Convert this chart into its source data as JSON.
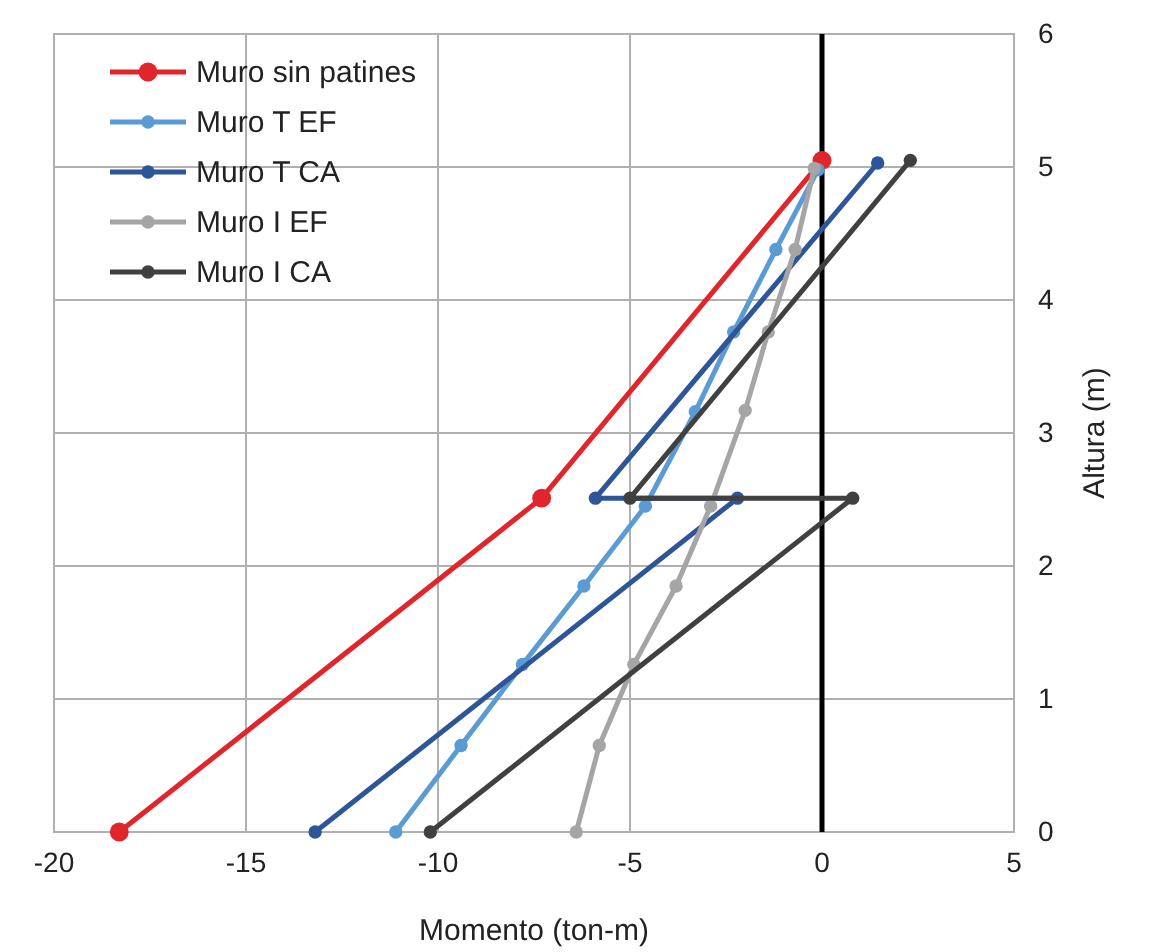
{
  "chart_data": {
    "type": "line",
    "xlabel": "Momento (ton-m)",
    "ylabel": "Altura (m)",
    "xlim": [
      -20,
      5
    ],
    "xticks": [
      -20,
      -15,
      -10,
      -5,
      0,
      5
    ],
    "ylim": [
      0,
      6
    ],
    "yticks": [
      0,
      1,
      2,
      3,
      4,
      5,
      6
    ],
    "grid": true,
    "legend": "top left",
    "marker": "circle",
    "line_style": "solid",
    "ref_lines": [
      {
        "axis": "x",
        "value": 0,
        "color": "#000000"
      }
    ],
    "series": [
      {
        "name": "Muro sin patines",
        "color": "#e0252b",
        "x": [
          -18.3,
          -7.3,
          0
        ],
        "values": [
          0,
          2.51,
          5.05
        ]
      },
      {
        "name": "Muro T EF",
        "color": "#5b9bd5",
        "x": [
          -11.1,
          -9.4,
          -7.8,
          -6.2,
          -4.6,
          -3.3,
          -2.3,
          -1.2,
          -0.1
        ],
        "values": [
          0,
          0.65,
          1.26,
          1.85,
          2.45,
          3.16,
          3.76,
          4.38,
          4.98
        ]
      },
      {
        "name": "Muro T CA",
        "color": "#2e5597",
        "x": [
          -13.2,
          -2.2,
          -5.9,
          1.45
        ],
        "values": [
          0,
          2.51,
          2.51,
          5.03
        ]
      },
      {
        "name": "Muro I EF",
        "color": "#a5a5a5",
        "x": [
          -6.4,
          -5.8,
          -4.9,
          -3.8,
          -2.9,
          -2.0,
          -1.4,
          -0.7,
          -0.2
        ],
        "values": [
          0,
          0.65,
          1.26,
          1.85,
          2.45,
          3.17,
          3.76,
          4.38,
          4.99
        ]
      },
      {
        "name": "Muro I CA",
        "color": "#404040",
        "x": [
          -10.2,
          0.8,
          -5.0,
          2.3
        ],
        "values": [
          0,
          2.51,
          2.51,
          5.05
        ]
      }
    ]
  }
}
